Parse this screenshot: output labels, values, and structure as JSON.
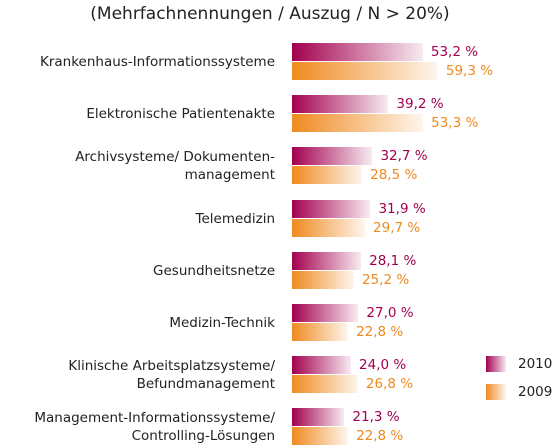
{
  "chart_data": {
    "type": "bar",
    "title": "(Mehrfachnennungen / Auszug / N > 20%)",
    "categories": [
      "Krankenhaus-Informationssysteme",
      "Elektronische Patientenakte",
      "Archivsysteme/ Dokumenten-\nmanagement",
      "Telemedizin",
      "Gesundheitsnetze",
      "Medizin-Technik",
      "Klinische Arbeitsplatzsysteme/\nBefundmanagement",
      "Management-Informationssysteme/\nControlling-Lösungen"
    ],
    "series": [
      {
        "name": "2010",
        "color": "#a3004f",
        "values": [
          53.2,
          39.2,
          32.7,
          31.9,
          28.1,
          27.0,
          24.0,
          21.3
        ],
        "value_labels": [
          "53,2 %",
          "39,2 %",
          "32,7 %",
          "31,9 %",
          "28,1 %",
          "27,0 %",
          "24,0 %",
          "21,3 %"
        ]
      },
      {
        "name": "2009",
        "color": "#ef8a1f",
        "values": [
          59.3,
          53.3,
          28.5,
          29.7,
          25.2,
          22.8,
          26.8,
          22.8
        ],
        "value_labels": [
          "59,3 %",
          "53,3 %",
          "28,5 %",
          "29,7 %",
          "25,2 %",
          "22,8 %",
          "26,8 %",
          "22,8 %"
        ]
      }
    ],
    "legend": "lower right"
  }
}
